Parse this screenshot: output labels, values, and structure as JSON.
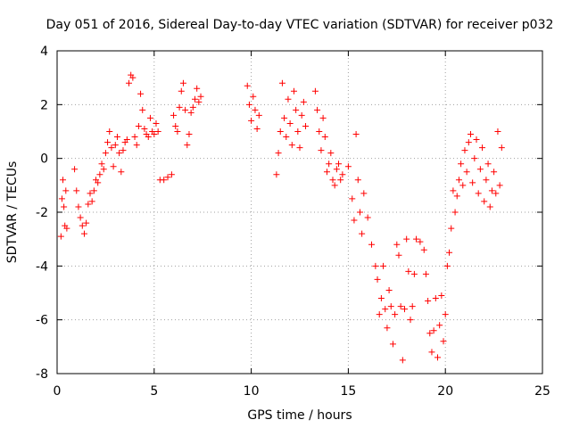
{
  "chart_data": {
    "type": "scatter",
    "title": "Day 051 of 2016, Sidereal Day-to-day VTEC variation (SDTVAR) for receiver p032",
    "xlabel": "GPS time / hours",
    "ylabel": "SDTVAR / TECUs",
    "xlim": [
      0,
      25
    ],
    "ylim": [
      -8,
      4
    ],
    "xticks": [
      0,
      5,
      10,
      15,
      20,
      25
    ],
    "yticks": [
      -8,
      -6,
      -4,
      -2,
      0,
      2,
      4
    ],
    "grid": true,
    "marker": "+",
    "color": "#ff0000",
    "series": [
      {
        "name": "SDTVAR",
        "points": [
          [
            0.2,
            -2.9
          ],
          [
            0.25,
            -1.5
          ],
          [
            0.3,
            -0.8
          ],
          [
            0.35,
            -1.8
          ],
          [
            0.4,
            -2.5
          ],
          [
            0.45,
            -1.2
          ],
          [
            0.5,
            -2.6
          ],
          [
            0.9,
            -0.4
          ],
          [
            1.0,
            -1.2
          ],
          [
            1.1,
            -1.8
          ],
          [
            1.2,
            -2.2
          ],
          [
            1.3,
            -2.5
          ],
          [
            1.4,
            -2.8
          ],
          [
            1.5,
            -2.4
          ],
          [
            1.6,
            -1.7
          ],
          [
            1.7,
            -1.3
          ],
          [
            1.8,
            -1.6
          ],
          [
            1.9,
            -1.2
          ],
          [
            2.0,
            -0.8
          ],
          [
            2.1,
            -0.9
          ],
          [
            2.2,
            -0.6
          ],
          [
            2.3,
            -0.2
          ],
          [
            2.4,
            -0.4
          ],
          [
            2.5,
            0.2
          ],
          [
            2.6,
            0.6
          ],
          [
            2.7,
            1.0
          ],
          [
            2.8,
            0.4
          ],
          [
            2.9,
            -0.3
          ],
          [
            3.0,
            0.5
          ],
          [
            3.1,
            0.8
          ],
          [
            3.2,
            0.2
          ],
          [
            3.3,
            -0.5
          ],
          [
            3.4,
            0.3
          ],
          [
            3.5,
            0.6
          ],
          [
            3.6,
            0.7
          ],
          [
            3.7,
            2.8
          ],
          [
            3.8,
            3.1
          ],
          [
            3.9,
            3.0
          ],
          [
            4.0,
            0.8
          ],
          [
            4.1,
            0.5
          ],
          [
            4.2,
            1.2
          ],
          [
            4.3,
            2.4
          ],
          [
            4.4,
            1.8
          ],
          [
            4.5,
            1.1
          ],
          [
            4.6,
            0.9
          ],
          [
            4.7,
            0.8
          ],
          [
            4.8,
            1.5
          ],
          [
            4.9,
            1.0
          ],
          [
            5.0,
            0.9
          ],
          [
            5.1,
            1.3
          ],
          [
            5.2,
            1.0
          ],
          [
            5.3,
            -0.8
          ],
          [
            5.5,
            -0.8
          ],
          [
            5.7,
            -0.7
          ],
          [
            5.9,
            -0.6
          ],
          [
            6.0,
            1.6
          ],
          [
            6.1,
            1.2
          ],
          [
            6.2,
            1.0
          ],
          [
            6.3,
            1.9
          ],
          [
            6.4,
            2.5
          ],
          [
            6.5,
            2.8
          ],
          [
            6.6,
            1.8
          ],
          [
            6.7,
            0.5
          ],
          [
            6.8,
            0.9
          ],
          [
            6.9,
            1.7
          ],
          [
            7.0,
            1.9
          ],
          [
            7.1,
            2.2
          ],
          [
            7.2,
            2.6
          ],
          [
            7.3,
            2.1
          ],
          [
            7.4,
            2.3
          ],
          [
            9.8,
            2.7
          ],
          [
            9.9,
            2.0
          ],
          [
            10.0,
            1.4
          ],
          [
            10.1,
            2.3
          ],
          [
            10.2,
            1.8
          ],
          [
            10.3,
            1.1
          ],
          [
            10.4,
            1.6
          ],
          [
            11.3,
            -0.6
          ],
          [
            11.4,
            0.2
          ],
          [
            11.5,
            1.0
          ],
          [
            11.6,
            2.8
          ],
          [
            11.7,
            1.5
          ],
          [
            11.8,
            0.8
          ],
          [
            11.9,
            2.2
          ],
          [
            12.0,
            1.3
          ],
          [
            12.1,
            0.5
          ],
          [
            12.2,
            2.5
          ],
          [
            12.3,
            1.8
          ],
          [
            12.4,
            1.0
          ],
          [
            12.5,
            0.4
          ],
          [
            12.6,
            1.6
          ],
          [
            12.7,
            2.1
          ],
          [
            12.8,
            1.2
          ],
          [
            13.3,
            2.5
          ],
          [
            13.4,
            1.8
          ],
          [
            13.5,
            1.0
          ],
          [
            13.6,
            0.3
          ],
          [
            13.7,
            1.5
          ],
          [
            13.8,
            0.8
          ],
          [
            13.9,
            -0.5
          ],
          [
            14.0,
            -0.2
          ],
          [
            14.1,
            0.2
          ],
          [
            14.2,
            -0.8
          ],
          [
            14.3,
            -1.0
          ],
          [
            14.4,
            -0.4
          ],
          [
            14.5,
            -0.2
          ],
          [
            14.6,
            -0.8
          ],
          [
            14.7,
            -0.6
          ],
          [
            15.0,
            -0.3
          ],
          [
            15.2,
            -1.5
          ],
          [
            15.3,
            -2.3
          ],
          [
            15.4,
            0.9
          ],
          [
            15.5,
            -0.8
          ],
          [
            15.6,
            -2.0
          ],
          [
            15.7,
            -2.8
          ],
          [
            15.8,
            -1.3
          ],
          [
            16.0,
            -2.2
          ],
          [
            16.2,
            -3.2
          ],
          [
            16.4,
            -4.0
          ],
          [
            16.5,
            -4.5
          ],
          [
            16.6,
            -5.8
          ],
          [
            16.7,
            -5.2
          ],
          [
            16.8,
            -4.0
          ],
          [
            16.9,
            -5.6
          ],
          [
            17.0,
            -6.3
          ],
          [
            17.1,
            -4.9
          ],
          [
            17.2,
            -5.5
          ],
          [
            17.3,
            -6.9
          ],
          [
            17.4,
            -5.8
          ],
          [
            17.5,
            -3.2
          ],
          [
            17.6,
            -3.6
          ],
          [
            17.7,
            -5.5
          ],
          [
            17.8,
            -7.5
          ],
          [
            17.9,
            -5.6
          ],
          [
            18.0,
            -3.0
          ],
          [
            18.1,
            -4.2
          ],
          [
            18.2,
            -6.0
          ],
          [
            18.3,
            -5.5
          ],
          [
            18.4,
            -4.3
          ],
          [
            18.5,
            -3.0
          ],
          [
            18.7,
            -3.1
          ],
          [
            18.9,
            -3.4
          ],
          [
            19.0,
            -4.3
          ],
          [
            19.1,
            -5.3
          ],
          [
            19.2,
            -6.5
          ],
          [
            19.3,
            -7.2
          ],
          [
            19.4,
            -6.4
          ],
          [
            19.5,
            -5.2
          ],
          [
            19.6,
            -7.4
          ],
          [
            19.7,
            -6.2
          ],
          [
            19.8,
            -5.1
          ],
          [
            19.9,
            -6.8
          ],
          [
            20.0,
            -5.8
          ],
          [
            20.1,
            -4.0
          ],
          [
            20.2,
            -3.5
          ],
          [
            20.3,
            -2.6
          ],
          [
            20.4,
            -1.2
          ],
          [
            20.5,
            -2.0
          ],
          [
            20.6,
            -1.4
          ],
          [
            20.7,
            -0.8
          ],
          [
            20.8,
            -0.2
          ],
          [
            20.9,
            -1.0
          ],
          [
            21.0,
            0.3
          ],
          [
            21.1,
            -0.5
          ],
          [
            21.2,
            0.6
          ],
          [
            21.3,
            0.9
          ],
          [
            21.4,
            -0.9
          ],
          [
            21.5,
            0.0
          ],
          [
            21.6,
            0.7
          ],
          [
            21.7,
            -1.3
          ],
          [
            21.8,
            -0.4
          ],
          [
            21.9,
            0.4
          ],
          [
            22.0,
            -1.6
          ],
          [
            22.1,
            -0.8
          ],
          [
            22.2,
            -0.2
          ],
          [
            22.3,
            -1.8
          ],
          [
            22.4,
            -1.2
          ],
          [
            22.5,
            -0.5
          ],
          [
            22.6,
            -1.3
          ],
          [
            22.7,
            1.0
          ],
          [
            22.8,
            -1.0
          ],
          [
            22.9,
            0.4
          ]
        ]
      }
    ]
  }
}
